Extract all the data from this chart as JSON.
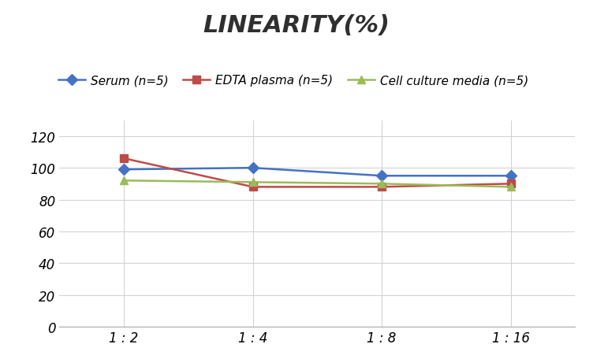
{
  "title": "LINEARITY(%)",
  "x_labels": [
    "1 : 2",
    "1 : 4",
    "1 : 8",
    "1 : 16"
  ],
  "x_positions": [
    0,
    1,
    2,
    3
  ],
  "series": [
    {
      "label": "Serum (n=5)",
      "values": [
        99,
        100,
        95,
        95
      ],
      "color": "#4472C4",
      "marker": "D",
      "linewidth": 1.8
    },
    {
      "label": "EDTA plasma (n=5)",
      "values": [
        106,
        88,
        88,
        90
      ],
      "color": "#BE4B48",
      "marker": "s",
      "linewidth": 1.8
    },
    {
      "label": "Cell culture media (n=5)",
      "values": [
        92,
        91,
        90,
        88
      ],
      "color": "#9BBB59",
      "marker": "^",
      "linewidth": 1.8
    }
  ],
  "ylim": [
    0,
    130
  ],
  "yticks": [
    0,
    20,
    40,
    60,
    80,
    100,
    120
  ],
  "background_color": "#ffffff",
  "grid_color": "#d3d3d3",
  "title_fontsize": 22,
  "legend_fontsize": 11,
  "tick_fontsize": 12
}
